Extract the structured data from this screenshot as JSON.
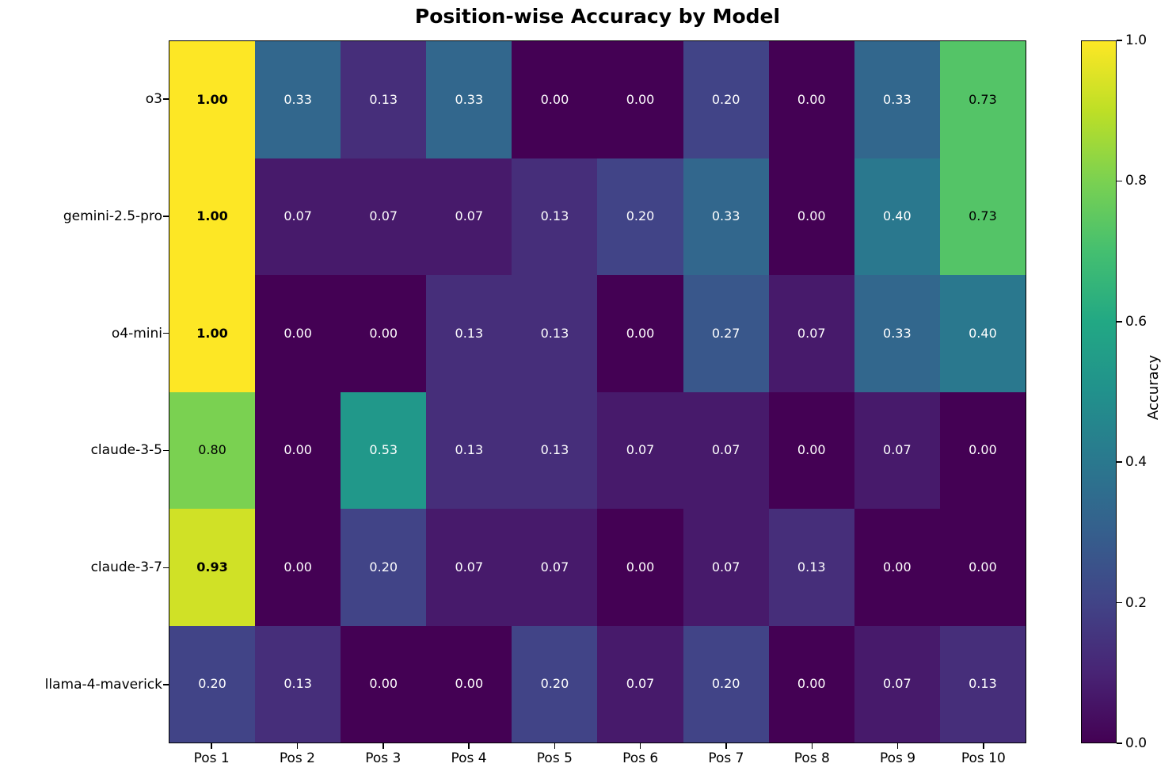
{
  "title": "Position-wise Accuracy by Model",
  "chart_data": {
    "type": "heatmap",
    "title": "Position-wise Accuracy by Model",
    "x_categories": [
      "Pos 1",
      "Pos 2",
      "Pos 3",
      "Pos 4",
      "Pos 5",
      "Pos 6",
      "Pos 7",
      "Pos 8",
      "Pos 9",
      "Pos 10"
    ],
    "y_categories": [
      "o3",
      "gemini-2.5-pro",
      "o4-mini",
      "claude-3-5",
      "claude-3-7",
      "llama-4-maverick"
    ],
    "series": [
      {
        "name": "o3",
        "values": [
          1.0,
          0.33,
          0.13,
          0.33,
          0.0,
          0.0,
          0.2,
          0.0,
          0.33,
          0.73
        ]
      },
      {
        "name": "gemini-2.5-pro",
        "values": [
          1.0,
          0.07,
          0.07,
          0.07,
          0.13,
          0.2,
          0.33,
          0.0,
          0.4,
          0.73
        ]
      },
      {
        "name": "o4-mini",
        "values": [
          1.0,
          0.0,
          0.0,
          0.13,
          0.13,
          0.0,
          0.27,
          0.07,
          0.33,
          0.4
        ]
      },
      {
        "name": "claude-3-5",
        "values": [
          0.8,
          0.0,
          0.53,
          0.13,
          0.13,
          0.07,
          0.07,
          0.0,
          0.07,
          0.0
        ]
      },
      {
        "name": "claude-3-7",
        "values": [
          0.93,
          0.0,
          0.2,
          0.07,
          0.07,
          0.0,
          0.07,
          0.13,
          0.0,
          0.0
        ]
      },
      {
        "name": "llama-4-maverick",
        "values": [
          0.2,
          0.13,
          0.0,
          0.0,
          0.2,
          0.07,
          0.2,
          0.0,
          0.07,
          0.13
        ]
      }
    ],
    "value_range": [
      0.0,
      1.0
    ],
    "value_format_decimals": 2,
    "colormap": "viridis",
    "colormap_stops": [
      "#440154",
      "#482475",
      "#414487",
      "#355f8d",
      "#2a788e",
      "#21918c",
      "#22a884",
      "#44bf70",
      "#7ad151",
      "#bddf26",
      "#fde725"
    ],
    "text_rules": {
      "dark_text_above": 0.6,
      "bold_at_or_above": 0.9,
      "dark_text_color": "#000000",
      "light_text_color": "#ffffff"
    },
    "colorbar": {
      "label": "Accuracy",
      "ticks": [
        "1.0",
        "0.8",
        "0.6",
        "0.4",
        "0.2",
        "0.0"
      ]
    },
    "grid": false,
    "legend": false
  }
}
